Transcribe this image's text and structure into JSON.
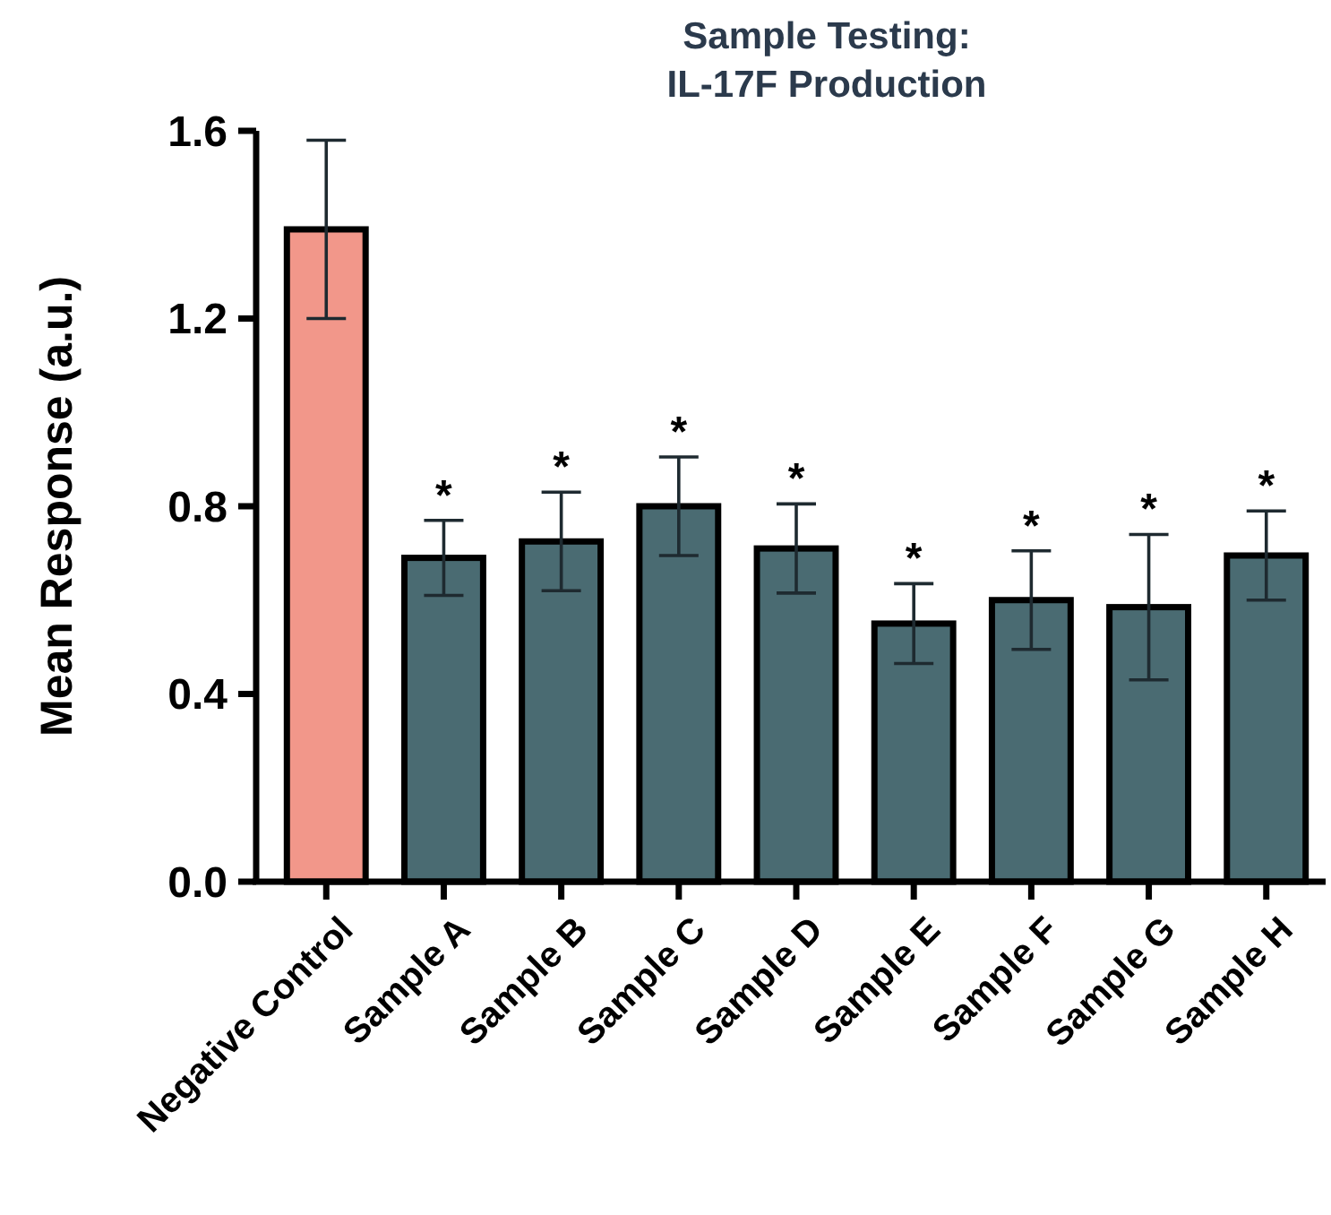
{
  "chart_data": {
    "type": "bar",
    "title": "Sample Testing:\nIL-17F Production",
    "ylabel": "Mean Response (a.u.)",
    "categories": [
      "Negative Control",
      "Sample A",
      "Sample B",
      "Sample C",
      "Sample D",
      "Sample E",
      "Sample F",
      "Sample G",
      "Sample H"
    ],
    "values": [
      1.39,
      0.69,
      0.725,
      0.8,
      0.71,
      0.55,
      0.6,
      0.585,
      0.695
    ],
    "errors": [
      0.19,
      0.08,
      0.105,
      0.105,
      0.095,
      0.085,
      0.105,
      0.155,
      0.095
    ],
    "colors": [
      "#f2978a",
      "#4a6b72",
      "#4a6b72",
      "#4a6b72",
      "#4a6b72",
      "#4a6b72",
      "#4a6b72",
      "#4a6b72",
      "#4a6b72"
    ],
    "ylim": [
      0,
      1.6
    ],
    "yticks": [
      {
        "value": 0,
        "label": "0.0"
      },
      {
        "value": 0.4,
        "label": "0.4"
      },
      {
        "value": 0.8,
        "label": "0.8"
      },
      {
        "value": 1.2,
        "label": "1.2"
      },
      {
        "value": 1.6,
        "label": "1.6"
      }
    ],
    "grid": false,
    "annotations": [
      {
        "text": "*",
        "x": "Sample A",
        "y": 0.77
      },
      {
        "text": "*",
        "x": "Sample B",
        "y": 0.83
      },
      {
        "text": "*",
        "x": "Sample C",
        "y": 0.905
      },
      {
        "text": "*",
        "x": "Sample D",
        "y": 0.805
      },
      {
        "text": "*",
        "x": "Sample E",
        "y": 0.635
      },
      {
        "text": "*",
        "x": "Sample F",
        "y": 0.705
      },
      {
        "text": "*",
        "x": "Sample G",
        "y": 0.74
      },
      {
        "text": "*",
        "x": "Sample H",
        "y": 0.79
      }
    ]
  }
}
